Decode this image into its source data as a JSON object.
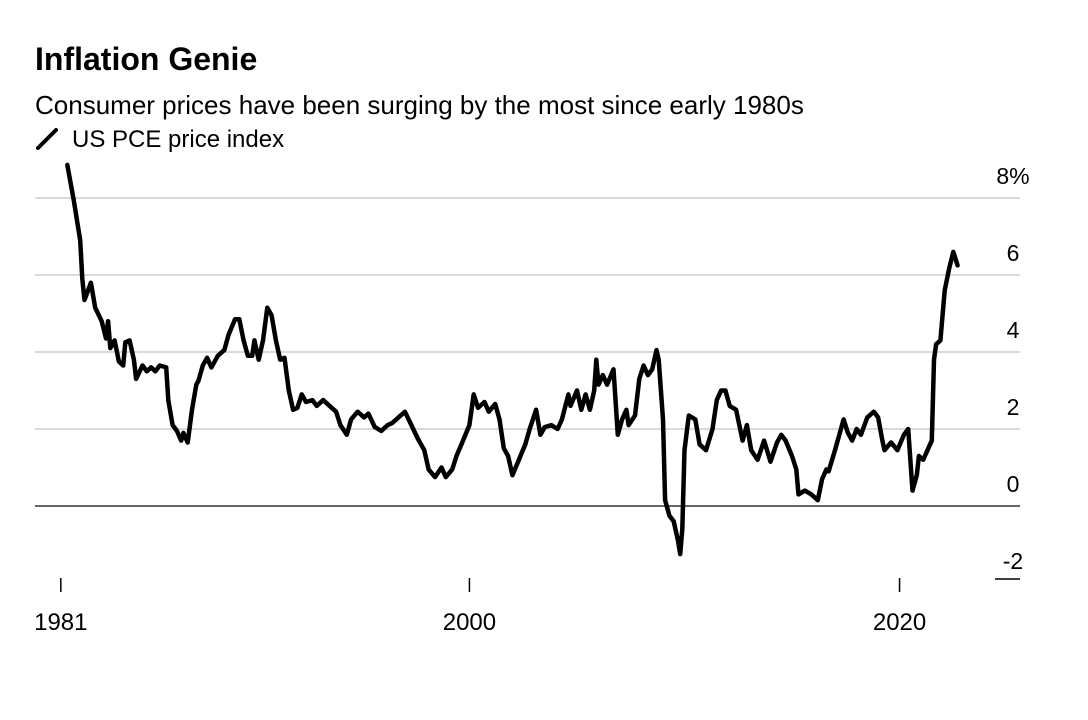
{
  "chart_data": {
    "type": "line",
    "title": "Inflation Genie",
    "subtitle": "Consumer prices have been surging by the most since early 1980s",
    "xlim": [
      1979.8,
      2025.6
    ],
    "xticks": [
      1981,
      2000,
      2020
    ],
    "ylim": [
      -2,
      8
    ],
    "yticks": [
      {
        "value": -2,
        "label": "-2"
      },
      0,
      2,
      4,
      6,
      {
        "value": 8,
        "label": "8%"
      }
    ],
    "grid": true,
    "x": [
      1981.3,
      1981.6,
      1981.9,
      1982.0,
      1982.1,
      1982.4,
      1982.6,
      1982.9,
      1983.1,
      1983.2,
      1983.3,
      1983.5,
      1983.7,
      1983.9,
      1984.0,
      1984.2,
      1984.4,
      1984.5,
      1984.8,
      1985.0,
      1985.2,
      1985.4,
      1985.6,
      1985.9,
      1986.0,
      1986.2,
      1986.4,
      1986.6,
      1986.7,
      1986.9,
      1987.1,
      1987.3,
      1987.4,
      1987.6,
      1987.8,
      1988.0,
      1988.3,
      1988.6,
      1988.8,
      1989.1,
      1989.3,
      1989.5,
      1989.7,
      1989.9,
      1990.0,
      1990.2,
      1990.4,
      1990.6,
      1990.8,
      1991.0,
      1991.2,
      1991.4,
      1991.6,
      1991.8,
      1992.0,
      1992.2,
      1992.4,
      1992.7,
      1992.9,
      1993.2,
      1993.5,
      1993.8,
      1994.0,
      1994.3,
      1994.5,
      1994.8,
      1995.1,
      1995.3,
      1995.6,
      1995.9,
      1996.2,
      1996.4,
      1996.7,
      1997.0,
      1997.3,
      1997.6,
      1997.9,
      1998.1,
      1998.4,
      1998.7,
      1998.9,
      1999.2,
      1999.4,
      1999.7,
      2000.0,
      2000.2,
      2000.4,
      2000.7,
      2000.9,
      2001.2,
      2001.4,
      2001.6,
      2001.8,
      2002.0,
      2002.3,
      2002.6,
      2002.8,
      2003.1,
      2003.3,
      2003.5,
      2003.8,
      2004.1,
      2004.3,
      2004.6,
      2004.7,
      2005.0,
      2005.2,
      2005.4,
      2005.6,
      2005.8,
      2005.9,
      2006.0,
      2006.2,
      2006.4,
      2006.7,
      2006.9,
      2007.1,
      2007.3,
      2007.4,
      2007.7,
      2007.9,
      2008.1,
      2008.3,
      2008.5,
      2008.7,
      2008.8,
      2009.0,
      2009.1,
      2009.3,
      2009.5,
      2009.7,
      2009.8,
      2009.9,
      2010.0,
      2010.2,
      2010.5,
      2010.7,
      2011.0,
      2011.3,
      2011.5,
      2011.7,
      2011.9,
      2012.1,
      2012.4,
      2012.7,
      2012.9,
      2013.1,
      2013.4,
      2013.7,
      2014.0,
      2014.3,
      2014.5,
      2014.7,
      2015.0,
      2015.2,
      2015.3,
      2015.6,
      2015.9,
      2016.2,
      2016.4,
      2016.6,
      2016.7,
      2017.0,
      2017.2,
      2017.4,
      2017.6,
      2017.8,
      2018.0,
      2018.2,
      2018.5,
      2018.8,
      2019.0,
      2019.2,
      2019.3,
      2019.6,
      2019.9,
      2020.2,
      2020.4,
      2020.6,
      2020.8,
      2020.9,
      2021.1,
      2021.3,
      2021.5,
      2021.6,
      2021.7,
      2021.9,
      2022.1,
      2022.3,
      2022.5,
      2022.7
    ],
    "series": [
      {
        "name": "US PCE price index",
        "color": "#000000",
        "values": [
          8.86,
          7.95,
          6.9,
          5.9,
          5.35,
          5.8,
          5.15,
          4.8,
          4.35,
          4.8,
          4.1,
          4.3,
          3.75,
          3.65,
          4.25,
          4.3,
          3.8,
          3.3,
          3.65,
          3.5,
          3.6,
          3.5,
          3.65,
          3.6,
          2.75,
          2.1,
          1.95,
          1.7,
          1.9,
          1.65,
          2.5,
          3.15,
          3.25,
          3.65,
          3.85,
          3.6,
          3.9,
          4.05,
          4.45,
          4.85,
          4.85,
          4.3,
          3.9,
          3.9,
          4.3,
          3.8,
          4.3,
          5.15,
          4.95,
          4.3,
          3.8,
          3.85,
          3.0,
          2.5,
          2.55,
          2.9,
          2.7,
          2.75,
          2.6,
          2.75,
          2.6,
          2.45,
          2.1,
          1.85,
          2.25,
          2.45,
          2.3,
          2.4,
          2.05,
          1.95,
          2.1,
          2.15,
          2.3,
          2.45,
          2.1,
          1.75,
          1.45,
          0.95,
          0.75,
          1.0,
          0.75,
          0.95,
          1.3,
          1.7,
          2.1,
          2.9,
          2.55,
          2.7,
          2.45,
          2.65,
          2.25,
          1.5,
          1.3,
          0.8,
          1.2,
          1.6,
          2.0,
          2.5,
          1.85,
          2.05,
          2.1,
          2.0,
          2.25,
          2.9,
          2.6,
          3.0,
          2.5,
          2.9,
          2.5,
          3.0,
          3.8,
          3.15,
          3.4,
          3.15,
          3.55,
          1.85,
          2.25,
          2.5,
          2.1,
          2.35,
          3.3,
          3.65,
          3.4,
          3.55,
          4.05,
          3.8,
          2.25,
          0.15,
          -0.25,
          -0.4,
          -0.9,
          -1.25,
          -0.6,
          1.45,
          2.35,
          2.25,
          1.6,
          1.45,
          2.0,
          2.75,
          3.0,
          3.0,
          2.6,
          2.5,
          1.7,
          2.1,
          1.45,
          1.2,
          1.7,
          1.15,
          1.65,
          1.85,
          1.7,
          1.3,
          0.95,
          0.3,
          0.4,
          0.3,
          0.15,
          0.7,
          0.95,
          0.9,
          1.45,
          1.85,
          2.25,
          1.9,
          1.7,
          2.0,
          1.85,
          2.3,
          2.45,
          2.3,
          1.7,
          1.45,
          1.65,
          1.45,
          1.85,
          2.0,
          0.4,
          0.8,
          1.3,
          1.2,
          1.45,
          1.7,
          3.8,
          4.2,
          4.3,
          5.6,
          6.15,
          6.6,
          6.25
        ]
      }
    ]
  }
}
